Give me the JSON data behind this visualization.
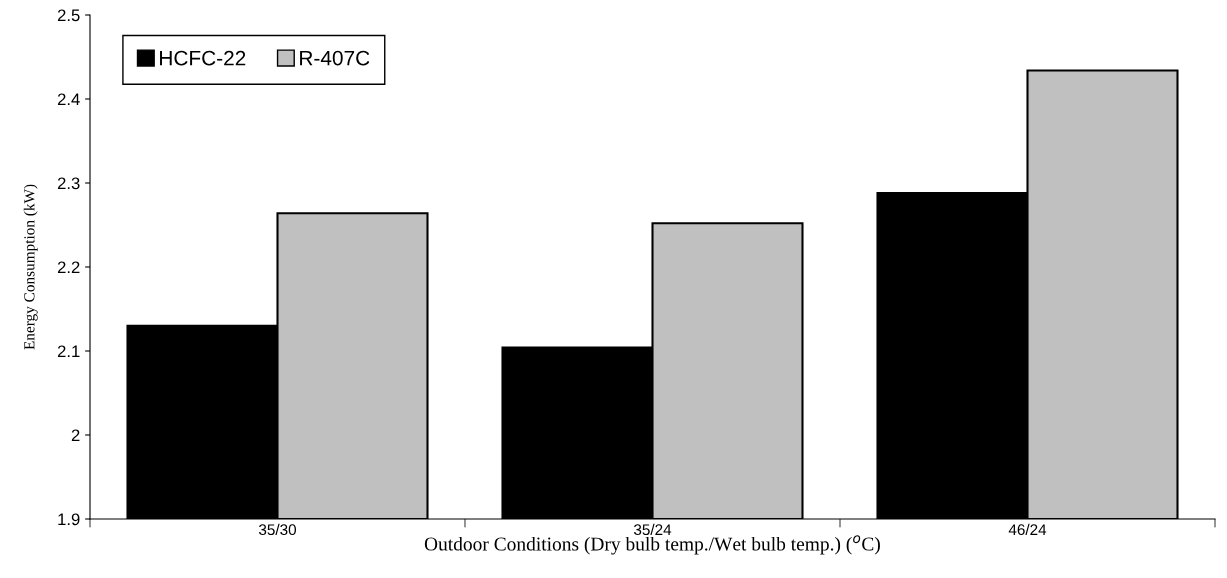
{
  "chart_data": {
    "type": "bar",
    "xlabel": "Outdoor Conditions (Dry bulb temp./Wet bulb temp.) ($^{o}$C)",
    "ylabel": "Energy Consumption (kW)",
    "categories": [
      "35/30",
      "35/24",
      "46/24"
    ],
    "series": [
      {
        "name": "HCFC-22",
        "color": "#000000",
        "values": [
          2.13,
          2.104,
          2.288
        ]
      },
      {
        "name": "R-407C",
        "color": "#c0c0c0",
        "values": [
          2.264,
          2.252,
          2.434
        ]
      }
    ],
    "ylim": [
      1.9,
      2.5
    ],
    "yticks": [
      1.9,
      2,
      2.1,
      2.2,
      2.3,
      2.4,
      2.5
    ],
    "grid": false,
    "legend": "top left"
  }
}
